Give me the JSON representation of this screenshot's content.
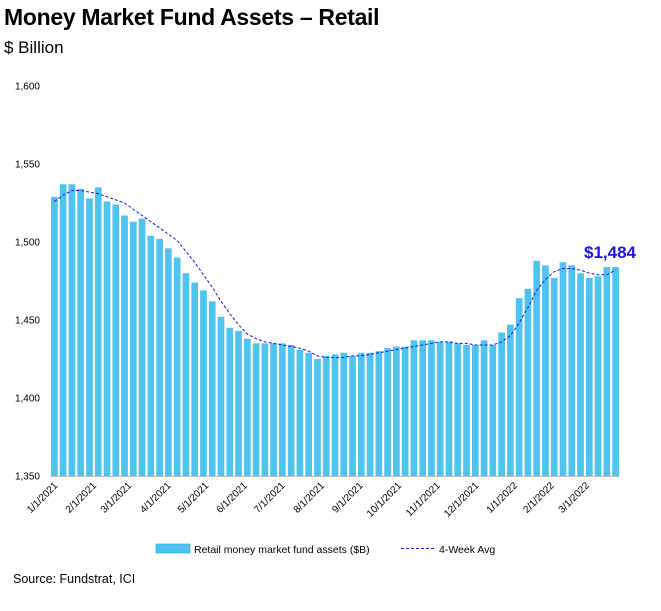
{
  "title": "Money Market Fund Assets – Retail",
  "subtitle": "$ Billion",
  "source": "Source: Fundstrat, ICI",
  "chart_data": {
    "type": "bar",
    "ylim": [
      1350,
      1600
    ],
    "yticks": [
      "1,350",
      "1,400",
      "1,450",
      "1,500",
      "1,550",
      "1,600"
    ],
    "ytick_values": [
      1350,
      1400,
      1450,
      1500,
      1550,
      1600
    ],
    "xtick_labels": [
      "1/1/2021",
      "2/1/2021",
      "3/1/2021",
      "4/1/2021",
      "5/1/2021",
      "6/1/2021",
      "7/1/2021",
      "8/1/2021",
      "9/1/2021",
      "10/1/2021",
      "11/1/2021",
      "12/1/2021",
      "1/1/2022",
      "2/1/2022",
      "3/1/2022"
    ],
    "xtick_positions": [
      0,
      4.4,
      8.4,
      12.9,
      17.2,
      21.6,
      25.9,
      30.4,
      34.8,
      39.2,
      43.6,
      48.0,
      52.4,
      56.6,
      60.6
    ],
    "annotation": "$1,484",
    "annotation_color": "#1a14e6",
    "bar_color": "#4ec3f0",
    "avg_color": "#1a14e6",
    "series": [
      {
        "name": "Retail money market fund assets ($B)",
        "values": [
          1529,
          1537,
          1537,
          1534,
          1528,
          1535,
          1526,
          1524,
          1517,
          1513,
          1515,
          1504,
          1502,
          1496,
          1490,
          1480,
          1474,
          1469,
          1462,
          1452,
          1445,
          1443,
          1438,
          1435,
          1435,
          1435,
          1435,
          1434,
          1431,
          1429,
          1425,
          1427,
          1428,
          1429,
          1427,
          1429,
          1429,
          1430,
          1432,
          1433,
          1433,
          1437,
          1437,
          1437,
          1436,
          1436,
          1435,
          1434,
          1434,
          1437,
          1434,
          1442,
          1447,
          1464,
          1470,
          1488,
          1485,
          1477,
          1487,
          1485,
          1480,
          1477,
          1478,
          1484,
          1484
        ]
      },
      {
        "name": "4-Week Avg",
        "style": "dashed",
        "values": [
          1526,
          1530,
          1533,
          1533,
          1532,
          1531,
          1529,
          1527,
          1525,
          1521,
          1517,
          1513,
          1509,
          1505,
          1501,
          1494,
          1487,
          1479,
          1471,
          1462,
          1454,
          1447,
          1441,
          1438,
          1436,
          1435,
          1434,
          1433,
          1432,
          1430,
          1427,
          1426,
          1426,
          1426,
          1427,
          1427,
          1428,
          1429,
          1430,
          1431,
          1432,
          1433,
          1434,
          1435,
          1436,
          1436,
          1435,
          1435,
          1434,
          1434,
          1434,
          1436,
          1440,
          1448,
          1458,
          1469,
          1476,
          1481,
          1483,
          1483,
          1482,
          1480,
          1479,
          1479,
          1482
        ]
      }
    ],
    "legend": {
      "placement": "bottom"
    },
    "grid": false
  }
}
